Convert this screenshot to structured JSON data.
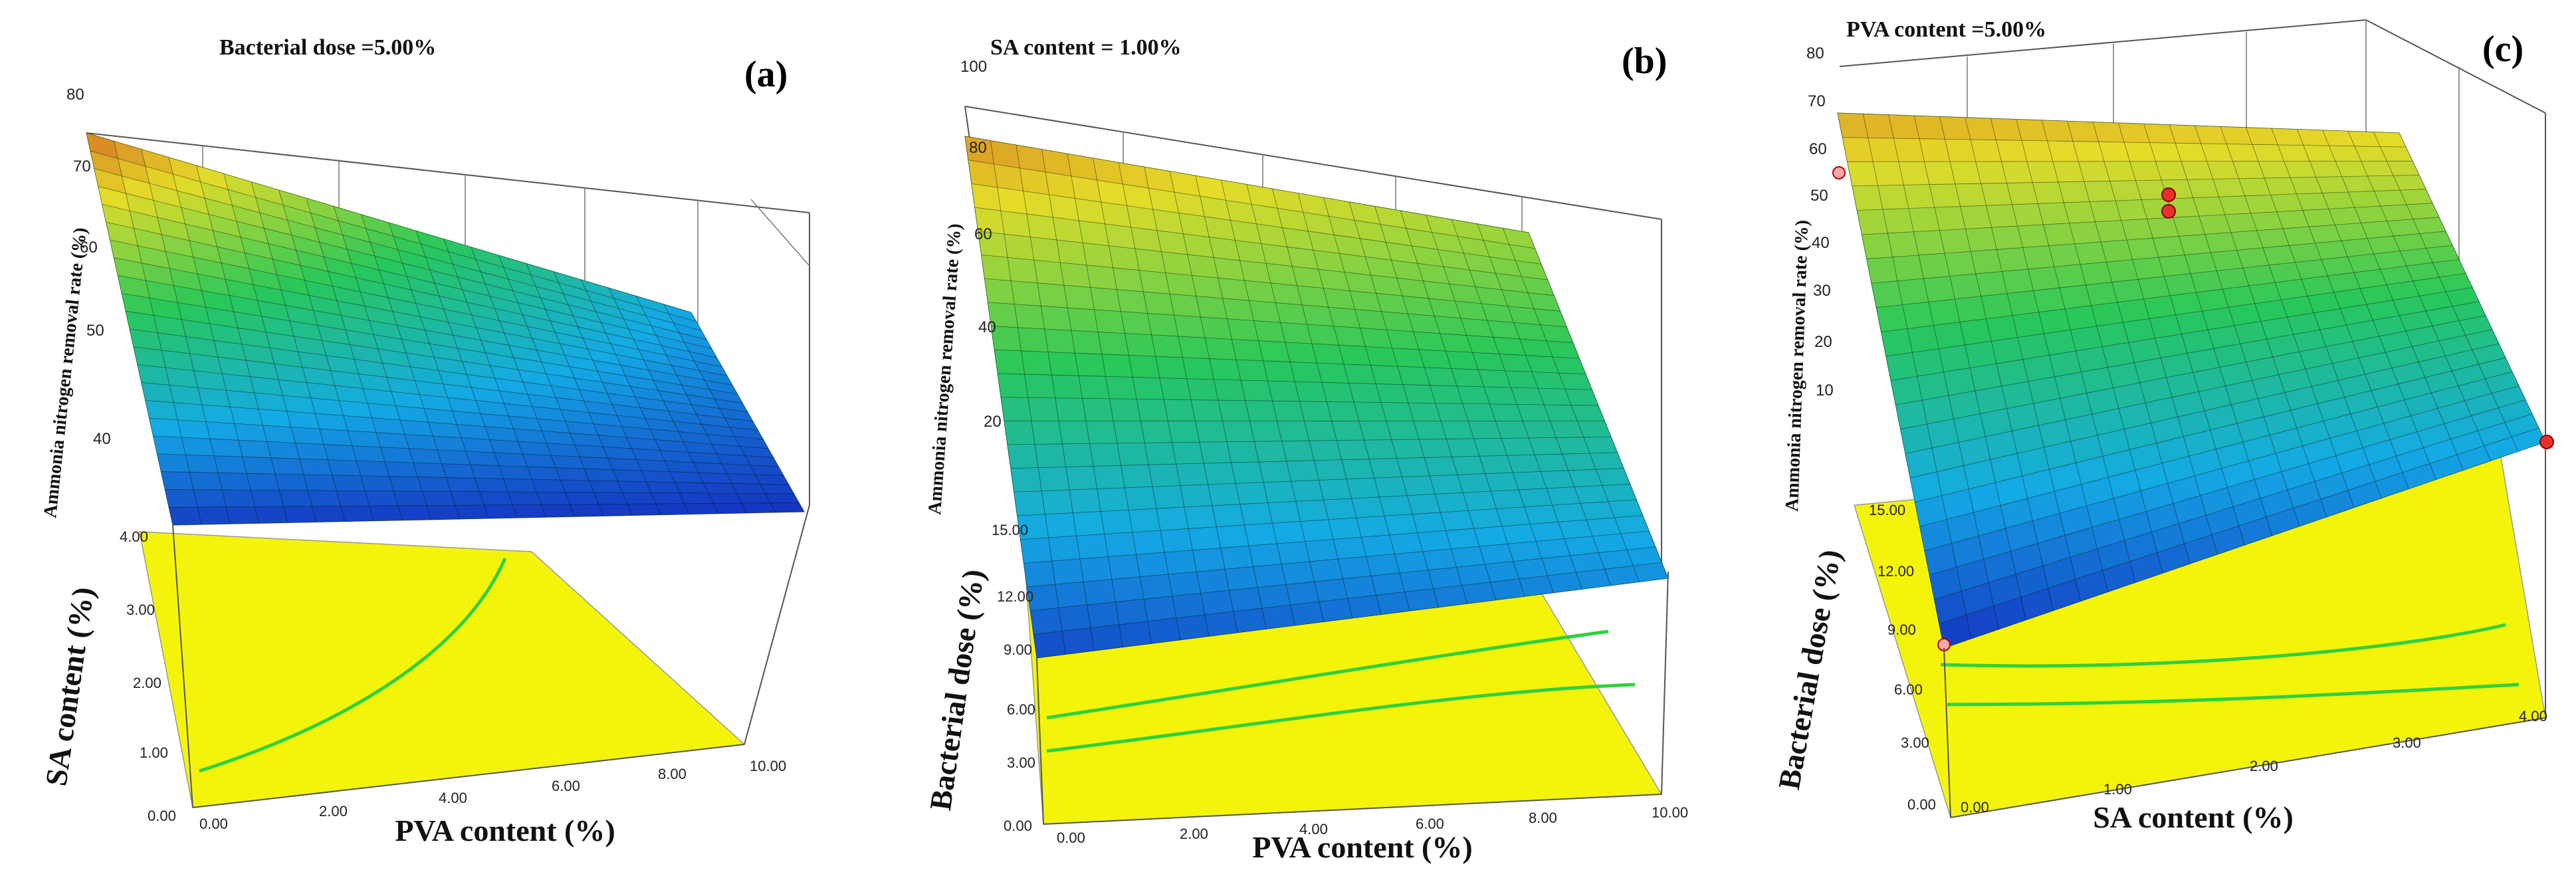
{
  "chart_data": [
    {
      "type": "surface3d",
      "panel_label": "(a)",
      "condition": "Bacterial dose =5.00%",
      "xlabel": "PVA content (%)",
      "ylabel": "SA content (%)",
      "zlabel": "Ammonia nitrogen removal rate (%)",
      "x_ticks": [
        "0.00",
        "2.00",
        "4.00",
        "6.00",
        "8.00",
        "10.00"
      ],
      "y_ticks": [
        "0.00",
        "1.00",
        "2.00",
        "3.00",
        "4.00"
      ],
      "z_ticks": [
        "40",
        "50",
        "60",
        "70",
        "80"
      ],
      "xlim": [
        0,
        10
      ],
      "ylim": [
        0,
        4
      ],
      "zlim": [
        33,
        80
      ],
      "surface_corners": {
        "x0_y0": 35,
        "x10_y0": 34,
        "x0_y4": 75,
        "x10_y4": 44
      }
    },
    {
      "type": "surface3d",
      "panel_label": "(b)",
      "condition": "SA content = 1.00%",
      "xlabel": "PVA content (%)",
      "ylabel": "Bacterial dose (%)",
      "zlabel": "Ammonia nitrogen removal rate (%)",
      "x_ticks": [
        "0.00",
        "2.00",
        "4.00",
        "6.00",
        "8.00",
        "10.00"
      ],
      "y_ticks": [
        "0.00",
        "3.00",
        "6.00",
        "9.00",
        "12.00",
        "15.00"
      ],
      "z_ticks": [
        "20",
        "40",
        "60",
        "80",
        "100"
      ],
      "xlim": [
        0,
        10
      ],
      "ylim": [
        0,
        15
      ],
      "zlim": [
        0,
        100
      ],
      "surface_corners": {
        "x0_y0": 6,
        "x10_y0": 20,
        "x0_y15": 85,
        "x10_y15": 65
      }
    },
    {
      "type": "surface3d",
      "panel_label": "(c)",
      "condition": "PVA content =5.00%",
      "xlabel": "SA content (%)",
      "ylabel": "Bacterial dose (%)",
      "zlabel": "Ammonia nitrogen removal rate (%)",
      "x_ticks": [
        "0.00",
        "1.00",
        "2.00",
        "3.00",
        "4.00"
      ],
      "y_ticks": [
        "0.00",
        "3.00",
        "6.00",
        "9.00",
        "12.00",
        "15.00"
      ],
      "z_ticks": [
        "10",
        "20",
        "30",
        "40",
        "50",
        "60",
        "70",
        "80"
      ],
      "xlim": [
        0,
        4
      ],
      "ylim": [
        0,
        15
      ],
      "zlim": [
        0,
        80
      ],
      "surface_corners": {
        "x0_y0": 2,
        "x4_y0": 20,
        "x0_y15": 66,
        "x4_y15": 61
      }
    }
  ],
  "colors": {
    "contour_floor": "#f4f40a",
    "contour_line": "#2fd13c",
    "background": "#ffffff",
    "points": "#e8302a"
  }
}
